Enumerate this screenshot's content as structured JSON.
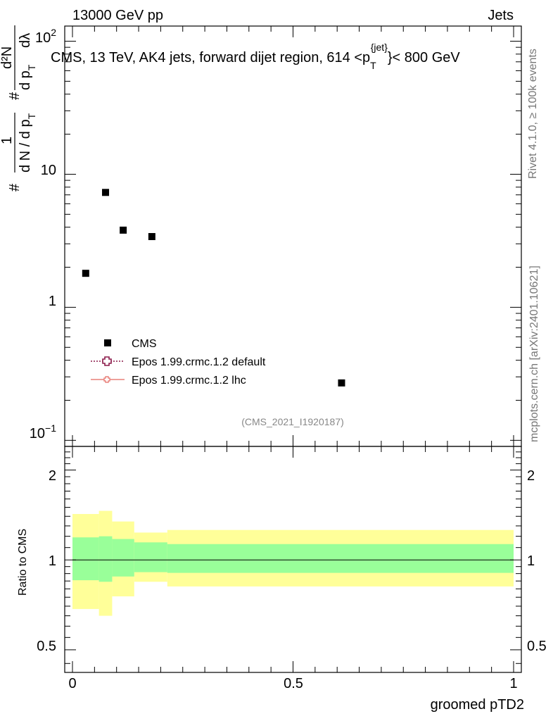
{
  "header": {
    "left": "13000 GeV pp",
    "right": "Jets"
  },
  "plot_title": "CMS, 13 TeV, AK4 jets, forward dijet region, 614 <p",
  "plot_title_sub": "T",
  "plot_title_sup": "{jet}",
  "plot_title_end": "}< 800 GeV",
  "side_labels": {
    "rivet": "Rivet 4.1.0, ≥ 100k events",
    "mcplots": "mcplots.cern.ch [arXiv:2401.10621]"
  },
  "analysis_id": "(CMS_2021_I1920187)",
  "ylabel_main": {
    "hash1": "#",
    "one": "1",
    "denom": "d N / d p",
    "sub_T": "T",
    "hash2": "#",
    "d2n": "d²N",
    "dpt": "d p",
    "sub_T2": "T",
    "dlambda": "dλ"
  },
  "ylabel_ratio": "Ratio to CMS",
  "xlabel": "groomed pTD2",
  "main_ticks": {
    "y": [
      {
        "label": "10",
        "sup": "−1"
      },
      {
        "label": "1",
        "sup": ""
      },
      {
        "label": "10",
        "sup": ""
      },
      {
        "label": "10",
        "sup": "2"
      }
    ]
  },
  "ratio_ticks": [
    "0.5",
    "1",
    "2"
  ],
  "x_ticks": [
    "0",
    "0.5",
    "1"
  ],
  "legend": [
    {
      "label": "CMS",
      "style": "data"
    },
    {
      "label": "Epos 1.99.crmc.1.2 default",
      "style": "dotted-cross",
      "color": "#8b1a4a"
    },
    {
      "label": "Epos 1.99.crmc.1.2 lhc",
      "style": "solid-cross",
      "color": "#e8817a"
    }
  ],
  "chart_data": {
    "type": "scatter",
    "xlabel": "groomed pTD2",
    "xlim": [
      0,
      1
    ],
    "main": {
      "ylog": true,
      "ylim": [
        0.09,
        130
      ],
      "series": [
        {
          "name": "CMS",
          "x": [
            0.03,
            0.075,
            0.115,
            0.18,
            0.61
          ],
          "y": [
            1.8,
            7.3,
            3.8,
            3.4,
            0.27
          ]
        }
      ]
    },
    "ratio": {
      "ylabel": "Ratio to CMS",
      "ylog": true,
      "ylim": [
        0.42,
        2.4
      ],
      "reference_line": 1,
      "bins": [
        {
          "x0": 0.0,
          "x1": 0.06,
          "inner": [
            0.855,
            1.19
          ],
          "outer": [
            0.685,
            1.425
          ]
        },
        {
          "x0": 0.06,
          "x1": 0.09,
          "inner": [
            0.845,
            1.2
          ],
          "outer": [
            0.65,
            1.46
          ]
        },
        {
          "x0": 0.09,
          "x1": 0.14,
          "inner": [
            0.88,
            1.175
          ],
          "outer": [
            0.755,
            1.345
          ]
        },
        {
          "x0": 0.14,
          "x1": 0.215,
          "inner": [
            0.91,
            1.145
          ],
          "outer": [
            0.845,
            1.235
          ]
        },
        {
          "x0": 0.215,
          "x1": 1.0,
          "inner": [
            0.905,
            1.13
          ],
          "outer": [
            0.815,
            1.26
          ]
        }
      ],
      "colors": {
        "inner": "#99ff99",
        "outer": "#ffff99"
      }
    }
  }
}
